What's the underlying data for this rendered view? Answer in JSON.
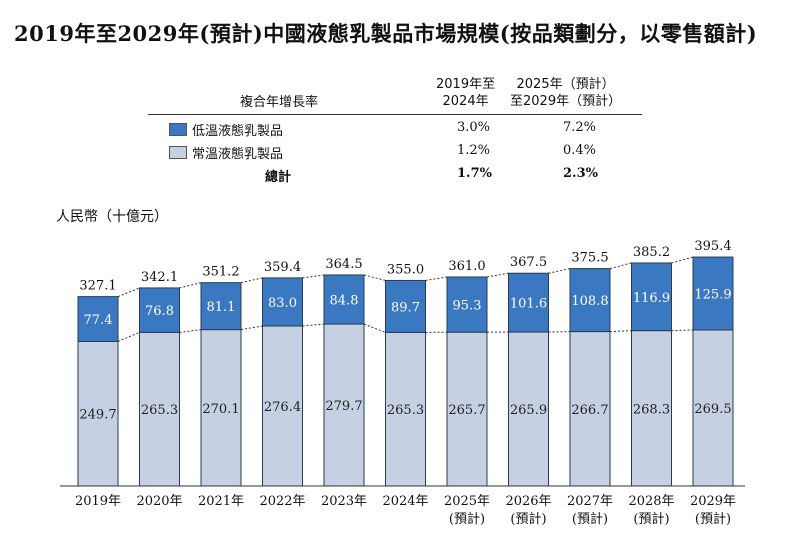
{
  "title": "2019年至2029年(預計)中國液態乳製品市場規模(按品類劃分，以零售額計)",
  "cagr_table": {
    "header_label": "複合年增長率",
    "col1_header": [
      "2019年至",
      "2024年"
    ],
    "col2_header": [
      "2025年（預計）",
      "至2029年（預計）"
    ],
    "rows": [
      {
        "label": "低溫液態乳製品",
        "col1": "3.0%",
        "col2": "7.2%",
        "color": "#3a78c2"
      },
      {
        "label": "常溫液態乳製品",
        "col1": "1.2%",
        "col2": "0.4%",
        "color": "#c5d1e3"
      },
      {
        "label": "總計",
        "col1": "1.7%",
        "col2": "2.3%"
      }
    ]
  },
  "chart_data": {
    "type": "bar",
    "stacked": true,
    "ylabel": "人民幣（十億元）",
    "categories": [
      "2019年",
      "2020年",
      "2021年",
      "2022年",
      "2023年",
      "2024年",
      "2025年",
      "2026年",
      "2027年",
      "2028年",
      "2029年"
    ],
    "category_sublabels": [
      "",
      "",
      "",
      "",
      "",
      "",
      "(預計)",
      "(預計)",
      "(預計)",
      "(預計)",
      "(預計)"
    ],
    "series": [
      {
        "name": "常溫液態乳製品",
        "color": "#c5d1e3",
        "values": [
          249.7,
          265.3,
          270.1,
          276.4,
          279.7,
          265.3,
          265.7,
          265.9,
          266.7,
          268.3,
          269.5
        ]
      },
      {
        "name": "低溫液態乳製品",
        "color": "#3a78c2",
        "values": [
          77.4,
          76.8,
          81.1,
          83.0,
          84.8,
          89.7,
          95.3,
          101.6,
          108.8,
          116.9,
          125.9
        ]
      }
    ],
    "totals": [
      327.1,
      342.1,
      351.2,
      359.4,
      364.5,
      355.0,
      361.0,
      367.5,
      375.5,
      385.2,
      395.4
    ],
    "grid": false,
    "legend": "top"
  }
}
